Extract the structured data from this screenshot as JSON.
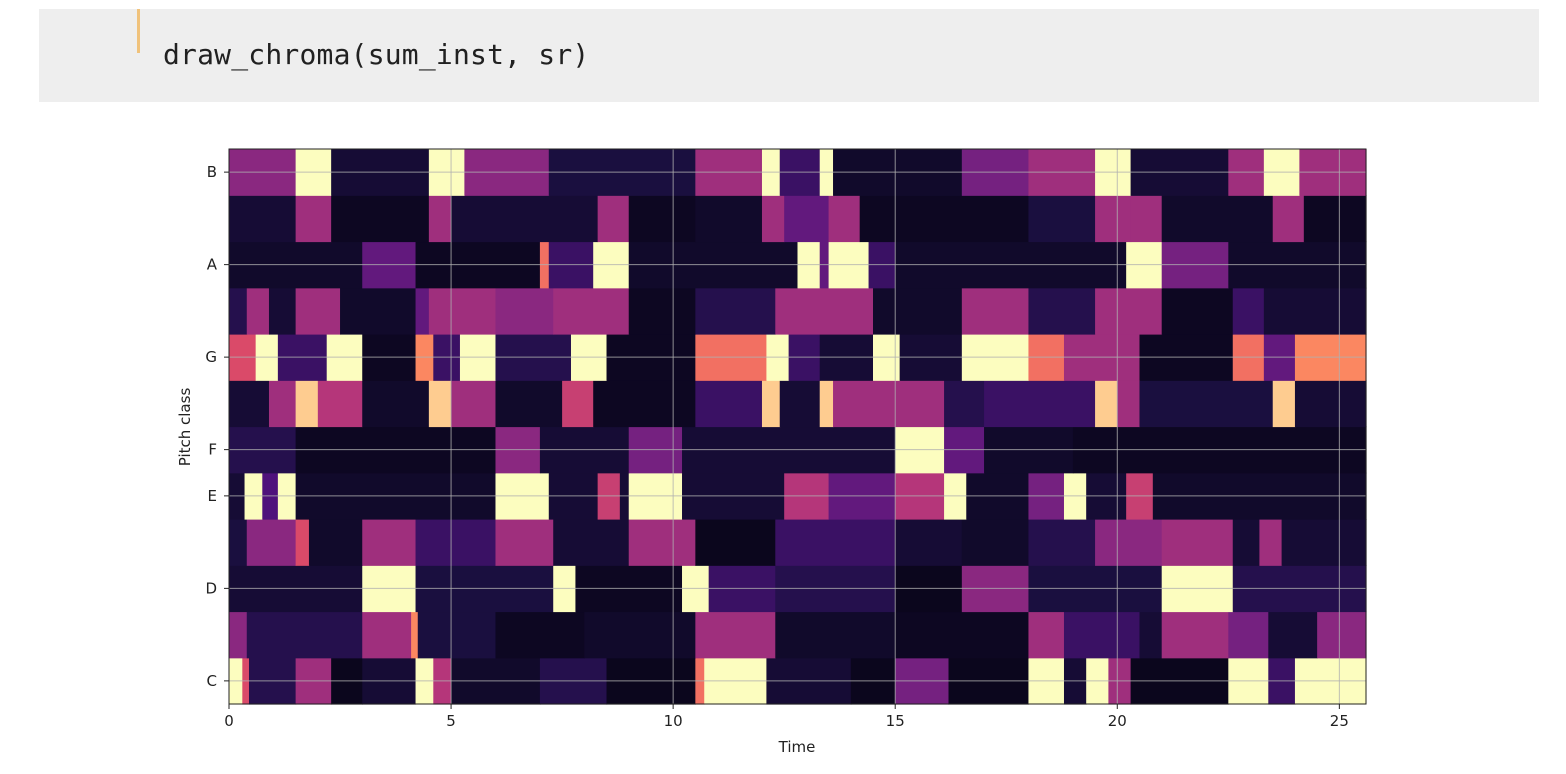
{
  "code_cell": {
    "code": "draw_chroma(sum_inst, sr)"
  },
  "chart_data": {
    "type": "heatmap",
    "title": "",
    "xlabel": "Time",
    "ylabel": "Pitch class",
    "xlim": [
      0,
      25.6
    ],
    "x_ticks": [
      "0",
      "5",
      "10",
      "15",
      "20",
      "25"
    ],
    "x_tick_values": [
      0,
      5,
      10,
      15,
      20,
      25
    ],
    "y_rows": [
      "C",
      "C#",
      "D",
      "D#",
      "E",
      "F",
      "F#",
      "G",
      "G#",
      "A",
      "A#",
      "B"
    ],
    "y_tick_labels": [
      "C",
      "D",
      "E",
      "F",
      "G",
      "A",
      "B"
    ],
    "y_tick_rows": [
      0,
      2,
      4,
      5,
      7,
      9,
      11
    ],
    "colormap": "magma",
    "value_range": [
      0,
      1
    ],
    "grid": true,
    "rows": [
      {
        "pitch": "C",
        "segments": [
          [
            0,
            0.3,
            1
          ],
          [
            0.3,
            0.45,
            0.6
          ],
          [
            0.45,
            1.5,
            0.15
          ],
          [
            1.5,
            2.3,
            0.45
          ],
          [
            2.3,
            3.0,
            0.05
          ],
          [
            3.0,
            4.2,
            0.1
          ],
          [
            4.2,
            4.6,
            1
          ],
          [
            4.6,
            5.0,
            0.5
          ],
          [
            5.0,
            7.0,
            0.08
          ],
          [
            7.0,
            8.5,
            0.15
          ],
          [
            8.5,
            10.5,
            0.05
          ],
          [
            10.5,
            10.7,
            0.7
          ],
          [
            10.7,
            12.1,
            1
          ],
          [
            12.1,
            14.0,
            0.1
          ],
          [
            14.0,
            15.0,
            0.05
          ],
          [
            15.0,
            16.2,
            0.35
          ],
          [
            16.2,
            18.0,
            0.05
          ],
          [
            18.0,
            18.8,
            1
          ],
          [
            18.8,
            19.3,
            0.1
          ],
          [
            19.3,
            19.8,
            1
          ],
          [
            19.8,
            20.3,
            0.45
          ],
          [
            20.3,
            22.5,
            0.05
          ],
          [
            22.5,
            23.4,
            1
          ],
          [
            23.4,
            24.0,
            0.2
          ],
          [
            24.0,
            25.6,
            1
          ]
        ]
      },
      {
        "pitch": "C#",
        "segments": [
          [
            0,
            0.4,
            0.4
          ],
          [
            0.4,
            3.0,
            0.15
          ],
          [
            3.0,
            4.1,
            0.45
          ],
          [
            4.1,
            4.25,
            0.75
          ],
          [
            4.25,
            6.0,
            0.12
          ],
          [
            6.0,
            8.0,
            0.06
          ],
          [
            8.0,
            10.5,
            0.08
          ],
          [
            10.5,
            12.3,
            0.45
          ],
          [
            12.3,
            15.0,
            0.08
          ],
          [
            15.0,
            18.0,
            0.06
          ],
          [
            18.0,
            18.8,
            0.45
          ],
          [
            18.8,
            20.5,
            0.2
          ],
          [
            20.5,
            21.0,
            0.1
          ],
          [
            21.0,
            22.5,
            0.45
          ],
          [
            22.5,
            23.4,
            0.35
          ],
          [
            23.4,
            24.5,
            0.1
          ],
          [
            24.5,
            25.6,
            0.4
          ]
        ]
      },
      {
        "pitch": "D",
        "segments": [
          [
            0,
            3.0,
            0.1
          ],
          [
            3.0,
            4.2,
            1
          ],
          [
            4.2,
            7.3,
            0.12
          ],
          [
            7.3,
            7.8,
            1
          ],
          [
            7.8,
            10.2,
            0.06
          ],
          [
            10.2,
            10.8,
            1
          ],
          [
            10.8,
            12.3,
            0.2
          ],
          [
            12.3,
            15.0,
            0.15
          ],
          [
            15.0,
            16.5,
            0.05
          ],
          [
            16.5,
            18.0,
            0.4
          ],
          [
            18.0,
            21.0,
            0.12
          ],
          [
            21.0,
            22.6,
            1
          ],
          [
            22.6,
            25.6,
            0.15
          ]
        ]
      },
      {
        "pitch": "D#",
        "segments": [
          [
            0,
            0.4,
            0.12
          ],
          [
            0.4,
            1.5,
            0.4
          ],
          [
            1.5,
            1.8,
            0.6
          ],
          [
            1.8,
            3.0,
            0.08
          ],
          [
            3.0,
            4.2,
            0.45
          ],
          [
            4.2,
            6.0,
            0.2
          ],
          [
            6.0,
            7.3,
            0.45
          ],
          [
            7.3,
            9.0,
            0.1
          ],
          [
            9.0,
            10.5,
            0.45
          ],
          [
            10.5,
            12.3,
            0.05
          ],
          [
            12.3,
            15.0,
            0.2
          ],
          [
            15.0,
            16.5,
            0.1
          ],
          [
            16.5,
            18.0,
            0.08
          ],
          [
            18.0,
            19.5,
            0.15
          ],
          [
            19.5,
            21.0,
            0.4
          ],
          [
            21.0,
            22.6,
            0.45
          ],
          [
            22.6,
            23.2,
            0.1
          ],
          [
            23.2,
            23.7,
            0.45
          ],
          [
            23.7,
            25.6,
            0.1
          ]
        ]
      },
      {
        "pitch": "E",
        "segments": [
          [
            0,
            0.35,
            0.1
          ],
          [
            0.35,
            0.75,
            1
          ],
          [
            0.75,
            1.1,
            0.25
          ],
          [
            1.1,
            1.5,
            1
          ],
          [
            1.5,
            6.0,
            0.08
          ],
          [
            6.0,
            7.2,
            1
          ],
          [
            7.2,
            8.3,
            0.1
          ],
          [
            8.3,
            8.8,
            0.55
          ],
          [
            8.8,
            9.0,
            0.1
          ],
          [
            9.0,
            10.2,
            1
          ],
          [
            10.2,
            12.5,
            0.1
          ],
          [
            12.5,
            13.5,
            0.5
          ],
          [
            13.5,
            15.0,
            0.3
          ],
          [
            15.0,
            16.1,
            0.5
          ],
          [
            16.1,
            16.6,
            1
          ],
          [
            16.6,
            18.0,
            0.08
          ],
          [
            18.0,
            18.8,
            0.35
          ],
          [
            18.8,
            19.3,
            1
          ],
          [
            19.3,
            20.2,
            0.1
          ],
          [
            20.2,
            20.8,
            0.55
          ],
          [
            20.8,
            25.6,
            0.08
          ]
        ]
      },
      {
        "pitch": "F",
        "segments": [
          [
            0,
            1.5,
            0.15
          ],
          [
            1.5,
            6.0,
            0.06
          ],
          [
            6.0,
            7.0,
            0.4
          ],
          [
            7.0,
            9.0,
            0.1
          ],
          [
            9.0,
            10.2,
            0.35
          ],
          [
            10.2,
            15.0,
            0.1
          ],
          [
            15.0,
            16.1,
            1
          ],
          [
            16.1,
            17.0,
            0.3
          ],
          [
            17.0,
            19.0,
            0.08
          ],
          [
            19.0,
            25.6,
            0.06
          ]
        ]
      },
      {
        "pitch": "F#",
        "segments": [
          [
            0,
            0.9,
            0.1
          ],
          [
            0.9,
            1.5,
            0.45
          ],
          [
            1.5,
            2.0,
            0.9
          ],
          [
            2.0,
            3.0,
            0.5
          ],
          [
            3.0,
            4.5,
            0.08
          ],
          [
            4.5,
            5.0,
            0.9
          ],
          [
            5.0,
            6.0,
            0.45
          ],
          [
            6.0,
            7.5,
            0.08
          ],
          [
            7.5,
            8.2,
            0.55
          ],
          [
            8.2,
            10.5,
            0.06
          ],
          [
            10.5,
            12.0,
            0.2
          ],
          [
            12.0,
            12.4,
            0.9
          ],
          [
            12.4,
            13.3,
            0.1
          ],
          [
            13.3,
            13.6,
            0.9
          ],
          [
            13.6,
            15.0,
            0.45
          ],
          [
            15.0,
            16.1,
            0.45
          ],
          [
            16.1,
            17.0,
            0.15
          ],
          [
            17.0,
            19.5,
            0.2
          ],
          [
            19.5,
            20.0,
            0.9
          ],
          [
            20.0,
            20.5,
            0.45
          ],
          [
            20.5,
            23.5,
            0.12
          ],
          [
            23.5,
            24.0,
            0.9
          ],
          [
            24.0,
            25.6,
            0.1
          ]
        ]
      },
      {
        "pitch": "G",
        "segments": [
          [
            0,
            0.6,
            0.6
          ],
          [
            0.6,
            1.1,
            1
          ],
          [
            1.1,
            2.2,
            0.2
          ],
          [
            2.2,
            3.0,
            1
          ],
          [
            3.0,
            4.2,
            0.06
          ],
          [
            4.2,
            4.6,
            0.75
          ],
          [
            4.6,
            5.2,
            0.2
          ],
          [
            5.2,
            6.0,
            1
          ],
          [
            6.0,
            7.7,
            0.15
          ],
          [
            7.7,
            8.5,
            1
          ],
          [
            8.5,
            10.5,
            0.06
          ],
          [
            10.5,
            12.1,
            0.7
          ],
          [
            12.1,
            12.6,
            1
          ],
          [
            12.6,
            13.3,
            0.2
          ],
          [
            13.3,
            14.5,
            0.1
          ],
          [
            14.5,
            15.1,
            1
          ],
          [
            15.1,
            16.5,
            0.1
          ],
          [
            16.5,
            18.0,
            1
          ],
          [
            18.0,
            18.8,
            0.7
          ],
          [
            18.8,
            20.5,
            0.45
          ],
          [
            20.5,
            22.6,
            0.06
          ],
          [
            22.6,
            23.3,
            0.7
          ],
          [
            23.3,
            24.0,
            0.3
          ],
          [
            24.0,
            25.6,
            0.75
          ]
        ]
      },
      {
        "pitch": "G#",
        "segments": [
          [
            0,
            0.4,
            0.15
          ],
          [
            0.4,
            0.9,
            0.45
          ],
          [
            0.9,
            1.5,
            0.1
          ],
          [
            1.5,
            2.5,
            0.45
          ],
          [
            2.5,
            4.2,
            0.08
          ],
          [
            4.2,
            4.5,
            0.3
          ],
          [
            4.5,
            6.0,
            0.45
          ],
          [
            6.0,
            7.3,
            0.4
          ],
          [
            7.3,
            9.0,
            0.45
          ],
          [
            9.0,
            10.5,
            0.06
          ],
          [
            10.5,
            12.3,
            0.15
          ],
          [
            12.3,
            14.5,
            0.45
          ],
          [
            14.5,
            16.5,
            0.08
          ],
          [
            16.5,
            18.0,
            0.45
          ],
          [
            18.0,
            19.5,
            0.15
          ],
          [
            19.5,
            21.0,
            0.45
          ],
          [
            21.0,
            22.6,
            0.06
          ],
          [
            22.6,
            23.3,
            0.2
          ],
          [
            23.3,
            25.6,
            0.1
          ]
        ]
      },
      {
        "pitch": "A",
        "segments": [
          [
            0,
            3.0,
            0.08
          ],
          [
            3.0,
            4.2,
            0.3
          ],
          [
            4.2,
            7.0,
            0.06
          ],
          [
            7.0,
            7.2,
            0.7
          ],
          [
            7.2,
            8.2,
            0.2
          ],
          [
            8.2,
            9.0,
            1
          ],
          [
            9.0,
            12.8,
            0.08
          ],
          [
            12.8,
            13.3,
            1
          ],
          [
            13.3,
            13.5,
            0.3
          ],
          [
            13.5,
            14.4,
            1
          ],
          [
            14.4,
            15.0,
            0.2
          ],
          [
            15.0,
            20.2,
            0.08
          ],
          [
            20.2,
            21.0,
            1
          ],
          [
            21.0,
            22.5,
            0.35
          ],
          [
            22.5,
            25.6,
            0.08
          ]
        ]
      },
      {
        "pitch": "A#",
        "segments": [
          [
            0,
            1.5,
            0.1
          ],
          [
            1.5,
            2.3,
            0.45
          ],
          [
            2.3,
            4.5,
            0.06
          ],
          [
            4.5,
            5.0,
            0.45
          ],
          [
            5.0,
            8.3,
            0.1
          ],
          [
            8.3,
            9.0,
            0.45
          ],
          [
            9.0,
            10.5,
            0.06
          ],
          [
            10.5,
            12.0,
            0.08
          ],
          [
            12.0,
            12.5,
            0.45
          ],
          [
            12.5,
            13.5,
            0.3
          ],
          [
            13.5,
            14.2,
            0.45
          ],
          [
            14.2,
            18.0,
            0.06
          ],
          [
            18.0,
            19.5,
            0.12
          ],
          [
            19.5,
            20.3,
            0.45
          ],
          [
            20.3,
            21.0,
            0.45
          ],
          [
            21.0,
            23.5,
            0.08
          ],
          [
            23.5,
            24.2,
            0.45
          ],
          [
            24.2,
            25.6,
            0.06
          ]
        ]
      },
      {
        "pitch": "B",
        "segments": [
          [
            0,
            1.5,
            0.4
          ],
          [
            1.5,
            2.3,
            1
          ],
          [
            2.3,
            4.5,
            0.1
          ],
          [
            4.5,
            5.3,
            1
          ],
          [
            5.3,
            7.2,
            0.4
          ],
          [
            7.2,
            10.5,
            0.12
          ],
          [
            10.5,
            12.0,
            0.45
          ],
          [
            12.0,
            12.4,
            1
          ],
          [
            12.4,
            13.3,
            0.2
          ],
          [
            13.3,
            13.6,
            1
          ],
          [
            13.6,
            16.5,
            0.08
          ],
          [
            16.5,
            18.0,
            0.35
          ],
          [
            18.0,
            19.5,
            0.45
          ],
          [
            19.5,
            20.3,
            1
          ],
          [
            20.3,
            22.5,
            0.1
          ],
          [
            22.5,
            23.3,
            0.45
          ],
          [
            23.3,
            24.1,
            1
          ],
          [
            24.1,
            25.6,
            0.45
          ]
        ]
      }
    ]
  }
}
